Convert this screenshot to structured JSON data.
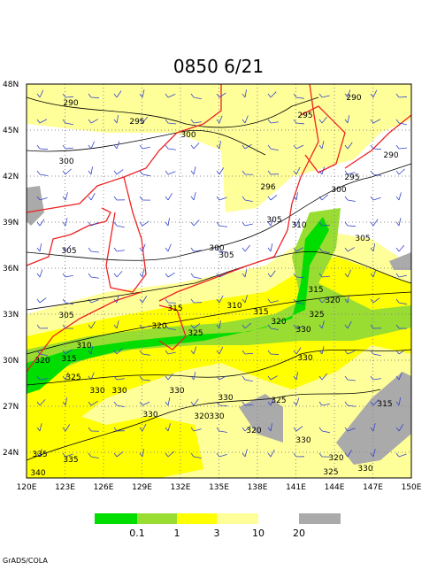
{
  "map": {
    "title": "0850 6/21",
    "lat_labels": [
      "48N",
      "45N",
      "42N",
      "39N",
      "36N",
      "33N",
      "30N",
      "27N",
      "24N"
    ],
    "lon_labels": [
      "120E",
      "123E",
      "126E",
      "129E",
      "132E",
      "135E",
      "138E",
      "141E",
      "144E",
      "147E",
      "150E"
    ],
    "contour_labels": [
      "290",
      "295",
      "300",
      "300",
      "305",
      "305",
      "310",
      "315",
      "320",
      "325",
      "330",
      "330",
      "330",
      "330",
      "335",
      "335",
      "340",
      "290",
      "295",
      "290",
      "295",
      "296",
      "300",
      "300",
      "305",
      "310",
      "305",
      "305",
      "315",
      "320",
      "310",
      "315",
      "315",
      "320",
      "325",
      "320",
      "325",
      "330",
      "330",
      "325",
      "330",
      "320",
      "330",
      "320",
      "330",
      "315",
      "320",
      "325",
      "330"
    ],
    "legend": [
      {
        "label": "0.1",
        "color": "#00dd00"
      },
      {
        "label": "1",
        "color": "#99dd33"
      },
      {
        "label": "3",
        "color": "#ffff00"
      },
      {
        "label": "10",
        "color": "#ffff99"
      },
      {
        "label": "20",
        "color": "#aaaaaa"
      }
    ],
    "credit": "GrADS/COLA"
  }
}
